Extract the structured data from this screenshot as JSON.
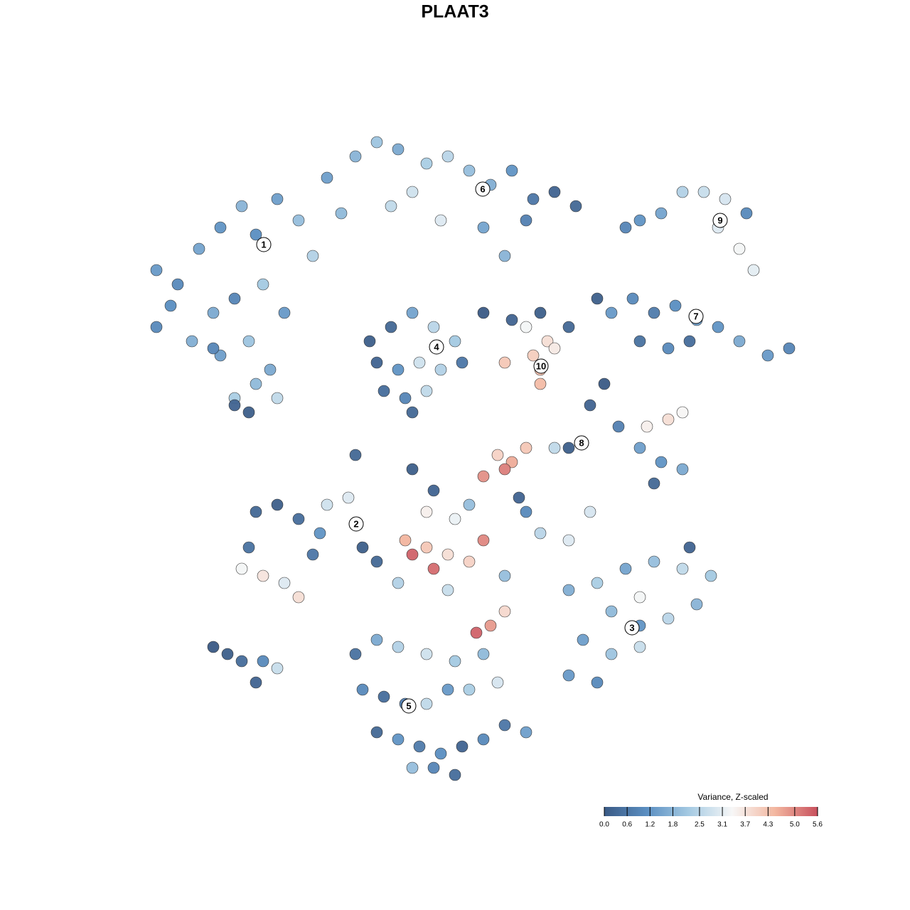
{
  "chart_data": {
    "type": "scatter",
    "title": "PLAAT3",
    "xlim": [
      0,
      128
    ],
    "ylim": [
      0,
      128
    ],
    "x": [
      22,
      25,
      28,
      31,
      34,
      36,
      39,
      42,
      30,
      33,
      37,
      40,
      24,
      27,
      31,
      35,
      38,
      33,
      36,
      39,
      33,
      35,
      30,
      22,
      44,
      46,
      50,
      53,
      56,
      60,
      63,
      66,
      69,
      72,
      75,
      78,
      81,
      55,
      62,
      48,
      68,
      71,
      58,
      74,
      90,
      93,
      96,
      99,
      102,
      105,
      101,
      104,
      106,
      88,
      86,
      89,
      92,
      95,
      98,
      101,
      104,
      108,
      111,
      90,
      94,
      97,
      84,
      52,
      55,
      58,
      61,
      64,
      53,
      56,
      59,
      62,
      54,
      57,
      60,
      65,
      58,
      68,
      72,
      76,
      80,
      74,
      77,
      75,
      76,
      78,
      76,
      71,
      83,
      85,
      87,
      90,
      93,
      96,
      92,
      91,
      94,
      96,
      80,
      78,
      70,
      72,
      74,
      68,
      71,
      66,
      61,
      58,
      50,
      36,
      39,
      42,
      46,
      49,
      51,
      53,
      34,
      37,
      40,
      42,
      35,
      44,
      45,
      57,
      58,
      60,
      61,
      63,
      66,
      68,
      60,
      64,
      67,
      69,
      71,
      56,
      63,
      71,
      76,
      80,
      83,
      74,
      73,
      80,
      84,
      88,
      92,
      96,
      100,
      86,
      90,
      94,
      98,
      82,
      86,
      90,
      80,
      84,
      97,
      90,
      50,
      53,
      56,
      60,
      64,
      68,
      51,
      54,
      57,
      60,
      63,
      66,
      53,
      56,
      59,
      62,
      65,
      68,
      71,
      58,
      61,
      64,
      74,
      70,
      30,
      32,
      34,
      37,
      36,
      39
    ],
    "y": [
      90,
      88,
      93,
      96,
      99,
      95,
      100,
      97,
      84,
      86,
      88,
      84,
      85,
      80,
      78,
      80,
      76,
      72,
      74,
      72,
      71,
      70,
      79,
      82,
      92,
      103,
      106,
      108,
      107,
      105,
      106,
      104,
      102,
      104,
      100,
      101,
      99,
      99,
      97,
      98,
      96,
      92,
      101,
      97,
      97,
      98,
      101,
      101,
      100,
      98,
      96,
      93,
      90,
      96,
      84,
      86,
      84,
      85,
      83,
      82,
      80,
      78,
      79,
      80,
      79,
      80,
      86,
      80,
      82,
      84,
      82,
      80,
      77,
      76,
      77,
      76,
      73,
      72,
      73,
      77,
      70,
      84,
      83,
      84,
      82,
      82,
      80,
      78,
      76,
      79,
      74,
      77,
      71,
      74,
      68,
      65,
      63,
      62,
      60,
      68,
      69,
      70,
      65,
      65,
      64,
      63,
      65,
      61,
      62,
      57,
      59,
      62,
      64,
      56,
      57,
      55,
      57,
      58,
      51,
      49,
      48,
      47,
      46,
      44,
      51,
      50,
      53,
      52,
      50,
      51,
      48,
      50,
      49,
      52,
      56,
      55,
      39,
      40,
      42,
      46,
      45,
      47,
      53,
      52,
      56,
      56,
      58,
      45,
      46,
      48,
      49,
      48,
      47,
      42,
      40,
      41,
      43,
      38,
      36,
      37,
      33,
      32,
      51,
      44,
      36,
      38,
      37,
      36,
      35,
      36,
      31,
      30,
      29,
      29,
      31,
      31,
      25,
      24,
      23,
      22,
      23,
      24,
      26,
      20,
      20,
      19,
      25,
      32,
      37,
      36,
      35,
      35,
      32,
      34
    ],
    "values": [
      1.3,
      1.0,
      1.5,
      1.2,
      1.8,
      1.1,
      1.4,
      2.0,
      1.6,
      0.9,
      2.2,
      1.3,
      1.1,
      1.7,
      1.4,
      2.1,
      1.6,
      2.3,
      1.9,
      2.6,
      0.2,
      0.1,
      0.9,
      1.0,
      2.4,
      1.4,
      1.8,
      2.1,
      1.6,
      2.3,
      2.5,
      2.0,
      1.7,
      1.2,
      0.6,
      0.2,
      0.3,
      2.6,
      3.0,
      1.9,
      1.5,
      1.8,
      2.8,
      0.8,
      1.2,
      1.5,
      2.4,
      2.7,
      2.9,
      1.0,
      3.0,
      3.3,
      3.1,
      0.9,
      1.3,
      1.0,
      0.7,
      1.1,
      1.4,
      1.2,
      1.6,
      1.3,
      0.9,
      0.5,
      1.0,
      0.4,
      0.1,
      0.1,
      0.3,
      1.5,
      2.5,
      2.2,
      0.2,
      1.2,
      2.8,
      2.4,
      0.4,
      0.9,
      2.6,
      0.6,
      0.3,
      0.0,
      0.2,
      0.1,
      0.3,
      3.3,
      3.8,
      4.1,
      4.3,
      3.6,
      4.4,
      4.2,
      0.2,
      0.0,
      0.8,
      1.4,
      1.2,
      1.6,
      0.3,
      3.5,
      3.8,
      3.4,
      0.1,
      2.6,
      4.0,
      4.6,
      4.2,
      4.9,
      5.1,
      2.0,
      0.2,
      0.1,
      0.3,
      0.3,
      0.1,
      0.4,
      2.8,
      3.0,
      0.1,
      0.3,
      3.3,
      3.7,
      3.0,
      3.8,
      0.5,
      0.6,
      1.2,
      4.5,
      5.4,
      4.2,
      5.3,
      3.8,
      4.0,
      5.0,
      3.5,
      3.2,
      5.4,
      4.8,
      3.9,
      2.4,
      2.7,
      2.0,
      2.5,
      3.0,
      2.9,
      1.0,
      0.2,
      1.7,
      2.3,
      1.5,
      2.0,
      2.6,
      2.2,
      1.9,
      1.2,
      2.5,
      1.8,
      1.4,
      2.1,
      2.7,
      1.3,
      1.0,
      0.2,
      3.3,
      0.5,
      1.6,
      2.4,
      2.8,
      2.2,
      1.9,
      1.0,
      0.4,
      0.8,
      2.6,
      1.3,
      2.3,
      0.3,
      1.2,
      0.7,
      1.1,
      0.2,
      1.0,
      0.6,
      2.0,
      0.9,
      0.4,
      1.4,
      2.9,
      0.0,
      0.1,
      0.4,
      1.0,
      0.2,
      2.7
    ],
    "clusters": {
      "labels": [
        "1",
        "6",
        "9",
        "7",
        "4",
        "10",
        "8",
        "2",
        "3",
        "5"
      ],
      "x": [
        37.1,
        67.9,
        101.3,
        97.9,
        61.4,
        76.1,
        81.8,
        50.1,
        88.9,
        57.5
      ],
      "y": [
        93.6,
        101.4,
        97.0,
        83.5,
        79.2,
        76.5,
        65.7,
        54.3,
        39.7,
        28.7
      ]
    },
    "colorbar": {
      "title": "Variance, Z-scaled",
      "clim": [
        0,
        5.6
      ],
      "colormap": [
        "#3a5a85",
        "#5b8fc2",
        "#a6cbe3",
        "#f7f7f7",
        "#f3b7a0",
        "#c8505d"
      ],
      "ticks": [
        {
          "value": 0,
          "label": "0.0"
        },
        0.6,
        1.2,
        1.8,
        2.5,
        3.1,
        3.7,
        4.3,
        {
          "value": 5,
          "label": "5.0"
        },
        5.6
      ]
    }
  }
}
